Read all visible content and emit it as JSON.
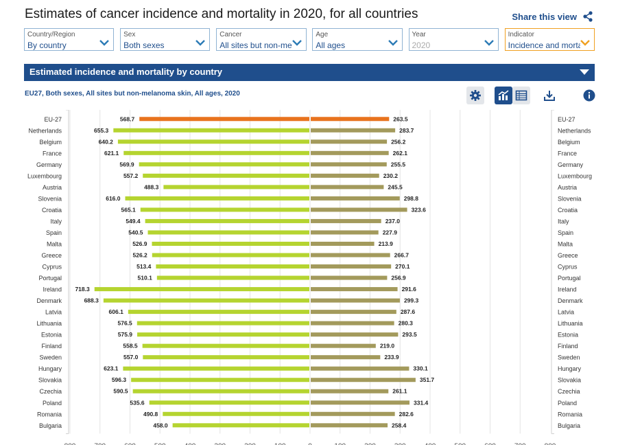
{
  "header": {
    "title": "Estimates of cancer incidence and mortality in 2020, for all countries",
    "share_label": "Share this view"
  },
  "filters": [
    {
      "label": "Country/Region",
      "value": "By country"
    },
    {
      "label": "Sex",
      "value": "Both sexes"
    },
    {
      "label": "Cancer",
      "value": "All sites but non-melanoma skin"
    },
    {
      "label": "Age",
      "value": "All ages"
    },
    {
      "label": "Year",
      "value": "2020"
    },
    {
      "label": "Indicator",
      "value": "Incidence and mortality"
    }
  ],
  "section": {
    "title": "Estimated incidence and mortality by country",
    "subtitle": "EU27, Both sexes, All sites but non-melanoma skin, All ages, 2020"
  },
  "toolbar": {
    "settings_icon": "gear-icon",
    "chart_icon": "chart-icon",
    "table_icon": "table-icon",
    "download_icon": "download-icon",
    "info_icon": "info-icon"
  },
  "colors": {
    "accent": "#1f4e8c",
    "eu_incidence": "#e8731e",
    "incidence": "#b5d430",
    "mortality": "#a39a5c",
    "active_filter_border": "#f0a020"
  },
  "chart_data": {
    "type": "bar",
    "orientation": "horizontal-mirrored",
    "title": "",
    "xlabel": "",
    "ylabel": "",
    "xlim": [
      -800,
      800
    ],
    "x_ticks": [
      800,
      700,
      600,
      500,
      400,
      300,
      200,
      100,
      0,
      100,
      200,
      300,
      400,
      500,
      600,
      700,
      800
    ],
    "grid": true,
    "categories": [
      "EU-27",
      "Netherlands",
      "Belgium",
      "France",
      "Germany",
      "Luxembourg",
      "Austria",
      "Slovenia",
      "Croatia",
      "Italy",
      "Spain",
      "Malta",
      "Greece",
      "Cyprus",
      "Portugal",
      "Ireland",
      "Denmark",
      "Latvia",
      "Lithuania",
      "Estonia",
      "Finland",
      "Sweden",
      "Hungary",
      "Slovakia",
      "Czechia",
      "Poland",
      "Romania",
      "Bulgaria"
    ],
    "series": [
      {
        "side": "left",
        "values": [
          568.7,
          655.3,
          640.2,
          621.1,
          569.9,
          557.2,
          488.3,
          616.0,
          565.1,
          549.4,
          540.5,
          526.9,
          526.2,
          513.4,
          510.1,
          718.3,
          688.3,
          606.1,
          576.5,
          575.9,
          558.5,
          557.0,
          623.1,
          596.3,
          590.5,
          535.6,
          490.8,
          458.0
        ]
      },
      {
        "side": "right",
        "values": [
          263.5,
          283.7,
          256.2,
          262.1,
          255.5,
          230.2,
          245.5,
          298.8,
          323.6,
          237.0,
          227.9,
          213.9,
          266.7,
          270.1,
          256.9,
          291.6,
          299.3,
          287.6,
          280.3,
          293.5,
          219.0,
          233.9,
          330.1,
          351.7,
          261.1,
          331.4,
          282.6,
          258.4
        ]
      }
    ]
  }
}
